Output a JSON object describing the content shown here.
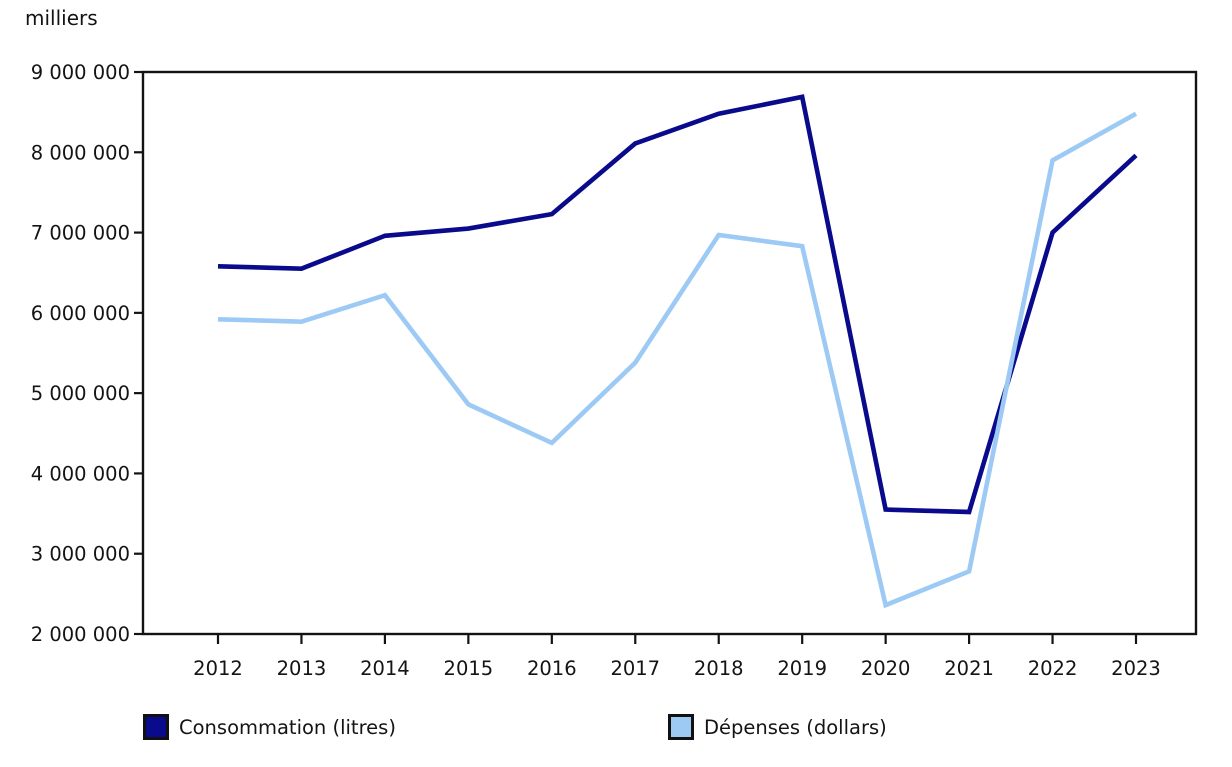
{
  "y_axis_title": "milliers",
  "chart_data": {
    "type": "line",
    "title": "",
    "xlabel": "",
    "ylabel": "milliers",
    "x": [
      2012,
      2013,
      2014,
      2015,
      2016,
      2017,
      2018,
      2019,
      2020,
      2021,
      2022,
      2023
    ],
    "x_tick_labels": [
      "2012",
      "2013",
      "2014",
      "2015",
      "2016",
      "2017",
      "2018",
      "2019",
      "2020",
      "2021",
      "2022",
      "2023"
    ],
    "series": [
      {
        "name": "Consommation (litres)",
        "color": "#0A0A8C",
        "values": [
          6580000,
          6550000,
          6960000,
          7050000,
          7230000,
          8110000,
          8480000,
          8690000,
          3550000,
          3520000,
          7000000,
          7960000
        ]
      },
      {
        "name": "Dépenses (dollars)",
        "color": "#9DCAF5",
        "values": [
          5920000,
          5890000,
          6220000,
          4860000,
          4380000,
          5380000,
          6970000,
          6830000,
          2360000,
          2780000,
          7900000,
          8480000
        ]
      }
    ],
    "ylim": [
      2000000,
      9000000
    ],
    "y_ticks": [
      {
        "value": 9000000,
        "label": "9 000 000"
      },
      {
        "value": 8000000,
        "label": "8 000 000"
      },
      {
        "value": 7000000,
        "label": "7 000 000"
      },
      {
        "value": 6000000,
        "label": "6 000 000"
      },
      {
        "value": 5000000,
        "label": "5 000 000"
      },
      {
        "value": 4000000,
        "label": "4 000 000"
      },
      {
        "value": 3000000,
        "label": "3 000 000"
      },
      {
        "value": 2000000,
        "label": "2 000 000"
      }
    ],
    "grid": false,
    "legend_position": "bottom"
  }
}
